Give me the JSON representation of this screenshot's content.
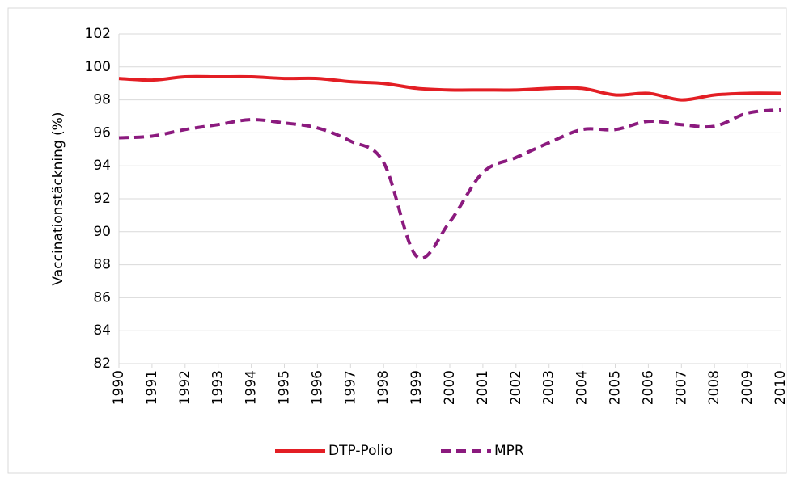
{
  "chart_data": {
    "type": "line",
    "y_label": "Vaccinationstäckning (%)",
    "categories": [
      "1990",
      "1991",
      "1992",
      "1993",
      "1994",
      "1995",
      "1996",
      "1997",
      "1998",
      "1999",
      "2000",
      "2001",
      "2002",
      "2003",
      "2004",
      "2005",
      "2006",
      "2007",
      "2008",
      "2009",
      "2010"
    ],
    "series": [
      {
        "name": "DTP-Polio",
        "color": "#e31e24",
        "line_style": "solid",
        "values": [
          99.3,
          99.2,
          99.4,
          99.4,
          99.4,
          99.3,
          99.3,
          99.1,
          99.0,
          98.7,
          98.6,
          98.6,
          98.6,
          98.7,
          98.7,
          98.3,
          98.4,
          98.0,
          98.3,
          98.4,
          98.4
        ]
      },
      {
        "name": "MPR",
        "color": "#8b1a7e",
        "line_style": "dashed",
        "values": [
          95.7,
          95.8,
          96.2,
          96.5,
          96.8,
          96.6,
          96.3,
          95.5,
          94.2,
          88.5,
          90.6,
          93.6,
          94.5,
          95.4,
          96.2,
          96.2,
          96.7,
          96.5,
          96.4,
          97.2,
          97.4
        ]
      }
    ],
    "ylim": [
      82,
      102
    ],
    "yticks": [
      82,
      84,
      86,
      88,
      90,
      92,
      94,
      96,
      98,
      100,
      102
    ],
    "grid": true,
    "legend": "bottom"
  }
}
